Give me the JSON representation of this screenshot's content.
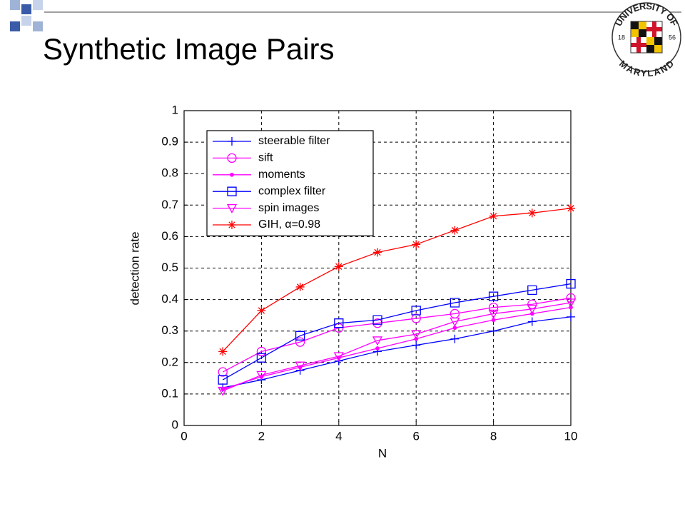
{
  "slide_title": "Synthetic Image Pairs",
  "logo": {
    "top": "UNIVERSITY OF",
    "bottom": "MARYLAND",
    "left": "18",
    "right": "56"
  },
  "chart_data": {
    "type": "line",
    "xlabel": "N",
    "ylabel": "detection rate",
    "x": [
      1,
      2,
      3,
      4,
      5,
      6,
      7,
      8,
      9,
      10
    ],
    "series": [
      {
        "name": "steerable filter",
        "color": "#0000ff",
        "marker": "plus",
        "values": [
          0.12,
          0.145,
          0.175,
          0.205,
          0.235,
          0.255,
          0.275,
          0.3,
          0.33,
          0.345
        ]
      },
      {
        "name": "sift",
        "color": "#ff00ff",
        "marker": "circle",
        "values": [
          0.17,
          0.235,
          0.265,
          0.31,
          0.325,
          0.34,
          0.355,
          0.375,
          0.385,
          0.405
        ]
      },
      {
        "name": "moments",
        "color": "#ff00ff",
        "marker": "dot",
        "values": [
          0.115,
          0.155,
          0.185,
          0.215,
          0.245,
          0.275,
          0.31,
          0.335,
          0.355,
          0.375
        ]
      },
      {
        "name": "complex filter",
        "color": "#0000ff",
        "marker": "square",
        "values": [
          0.145,
          0.215,
          0.285,
          0.325,
          0.335,
          0.365,
          0.39,
          0.41,
          0.43,
          0.45
        ]
      },
      {
        "name": "spin images",
        "color": "#ff00ff",
        "marker": "triangle-down",
        "values": [
          0.11,
          0.16,
          0.19,
          0.22,
          0.27,
          0.29,
          0.33,
          0.355,
          0.37,
          0.39
        ]
      },
      {
        "name": "GIH, α=0.98",
        "color": "#ff0000",
        "marker": "asterisk",
        "values": [
          0.235,
          0.365,
          0.44,
          0.505,
          0.55,
          0.575,
          0.62,
          0.665,
          0.675,
          0.69
        ]
      }
    ],
    "xlim": [
      0,
      10
    ],
    "xticks": [
      0,
      2,
      4,
      6,
      8,
      10
    ],
    "ylim": [
      0,
      1
    ],
    "yticks": [
      0,
      0.1,
      0.2,
      0.3,
      0.4,
      0.5,
      0.6,
      0.7,
      0.8,
      0.9,
      1
    ],
    "grid": true,
    "legend": "upper left"
  }
}
